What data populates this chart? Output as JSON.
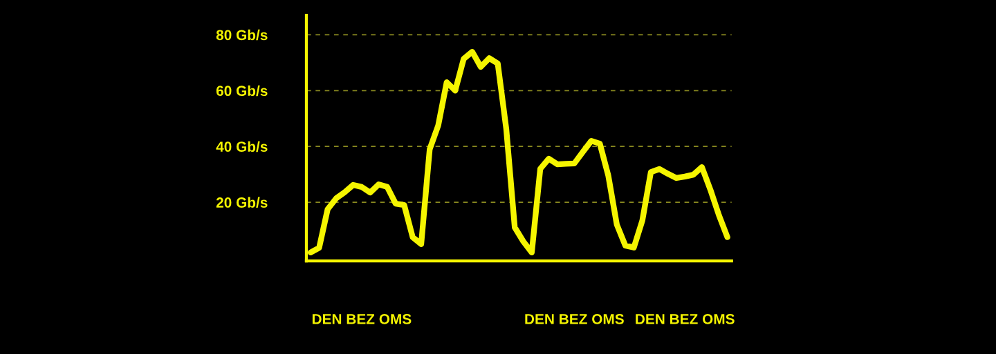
{
  "chart_data": {
    "type": "line",
    "categories": [
      null,
      null,
      null,
      null,
      null,
      null,
      "DEN BEZ OMS",
      null,
      null,
      null,
      null,
      null,
      null,
      null,
      null,
      null,
      null,
      null,
      null,
      null,
      null,
      null,
      null,
      null,
      null,
      null,
      null,
      null,
      null,
      null,
      null,
      "DEN BEZ OMS",
      null,
      null,
      null,
      null,
      null,
      null,
      null,
      null,
      null,
      null,
      null,
      null,
      "DEN BEZ OMS",
      null,
      null,
      null,
      null,
      null
    ],
    "series": [
      {
        "color": "#f5f500",
        "values": [
          2,
          3.7,
          17.5,
          21.4,
          23.6,
          26.2,
          25.5,
          23.5,
          26.4,
          25.5,
          19.5,
          19,
          7.5,
          5,
          39,
          47.5,
          63,
          60,
          71.4,
          73.9,
          68.5,
          71.6,
          69.7,
          46.3,
          11,
          6,
          2,
          32,
          35.6,
          33.6,
          33.8,
          33.9,
          38,
          42,
          41,
          29.5,
          12,
          4.5,
          3.8,
          13.5,
          30.8,
          31.9,
          30.2,
          28.7,
          29.2,
          29.9,
          32.6,
          24.5,
          15.4,
          7.5
        ]
      }
    ],
    "ylim": [
      -1,
      87
    ],
    "yticks": [
      {
        "value": 20,
        "label": "20 Gb/s"
      },
      {
        "value": 40,
        "label": "40 Gb/s"
      },
      {
        "value": 60,
        "label": "60 Gb/s"
      },
      {
        "value": 80,
        "label": "80 Gb/s"
      }
    ],
    "grid": "y",
    "line_style": "solid"
  }
}
